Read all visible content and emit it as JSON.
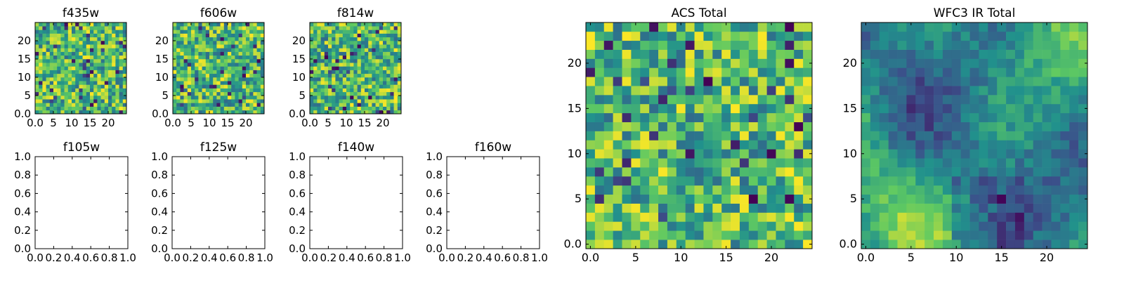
{
  "chart_data": [
    {
      "type": "heatmap",
      "title": "f435w",
      "xlim": [
        0,
        25
      ],
      "ylim": [
        0,
        25
      ],
      "xticks": [
        0,
        5,
        10,
        15,
        20
      ],
      "yticks": [
        0,
        5,
        10,
        15,
        20
      ],
      "grid": false,
      "cells": "random",
      "note_values": "pixel-level noise, values not individually legible"
    },
    {
      "type": "heatmap",
      "title": "f606w",
      "xlim": [
        0,
        25
      ],
      "ylim": [
        0,
        25
      ],
      "xticks": [
        0,
        5,
        10,
        15,
        20
      ],
      "yticks": [
        0,
        5,
        10,
        15,
        20
      ],
      "grid": false,
      "cells": "random"
    },
    {
      "type": "heatmap",
      "title": "f814w",
      "xlim": [
        0,
        25
      ],
      "ylim": [
        0,
        25
      ],
      "xticks": [
        0,
        5,
        10,
        15,
        20
      ],
      "yticks": [
        0,
        5,
        10,
        15,
        20
      ],
      "grid": false,
      "cells": "random"
    },
    {
      "type": "heatmap",
      "title": "f105w",
      "xlim": [
        0,
        1
      ],
      "ylim": [
        0,
        1
      ],
      "xticks": [
        0.0,
        0.2,
        0.4,
        0.6,
        0.8,
        1.0
      ],
      "yticks": [
        0.0,
        0.2,
        0.4,
        0.6,
        0.8,
        1.0
      ],
      "grid": false,
      "cells": "empty"
    },
    {
      "type": "heatmap",
      "title": "f125w",
      "xlim": [
        0,
        1
      ],
      "ylim": [
        0,
        1
      ],
      "xticks": [
        0.0,
        0.2,
        0.4,
        0.6,
        0.8,
        1.0
      ],
      "yticks": [
        0.0,
        0.2,
        0.4,
        0.6,
        0.8,
        1.0
      ],
      "grid": false,
      "cells": "empty"
    },
    {
      "type": "heatmap",
      "title": "f140w",
      "xlim": [
        0,
        1
      ],
      "ylim": [
        0,
        1
      ],
      "xticks": [
        0.0,
        0.2,
        0.4,
        0.6,
        0.8,
        1.0
      ],
      "yticks": [
        0.0,
        0.2,
        0.4,
        0.6,
        0.8,
        1.0
      ],
      "grid": false,
      "cells": "empty"
    },
    {
      "type": "heatmap",
      "title": "f160w",
      "xlim": [
        0,
        1
      ],
      "ylim": [
        0,
        1
      ],
      "xticks": [
        0.0,
        0.2,
        0.4,
        0.6,
        0.8,
        1.0
      ],
      "yticks": [
        0.0,
        0.2,
        0.4,
        0.6,
        0.8,
        1.0
      ],
      "grid": false,
      "cells": "empty"
    },
    {
      "type": "heatmap",
      "title": "ACS Total",
      "xlim": [
        -0.5,
        24.5
      ],
      "ylim": [
        -0.5,
        24.5
      ],
      "xticks": [
        0,
        5,
        10,
        15,
        20
      ],
      "yticks": [
        0,
        5,
        10,
        15,
        20
      ],
      "grid": false,
      "cells": "random"
    },
    {
      "type": "heatmap",
      "title": "WFC3 IR Total",
      "xlim": [
        -0.5,
        24.5
      ],
      "ylim": [
        -0.5,
        24.5
      ],
      "xticks": [
        0,
        5,
        10,
        15,
        20
      ],
      "yticks": [
        0,
        5,
        10,
        15,
        20
      ],
      "grid": false,
      "cells": "smooth"
    }
  ],
  "colormap": [
    "#440154",
    "#3b528b",
    "#21918c",
    "#5ec962",
    "#fde725"
  ]
}
